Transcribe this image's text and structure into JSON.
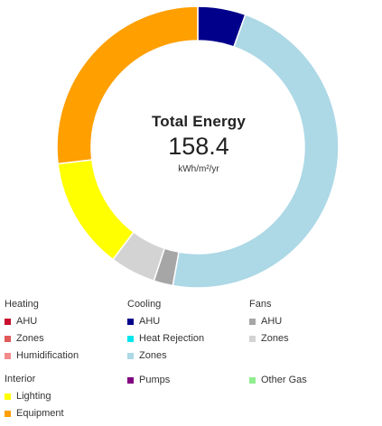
{
  "center": {
    "title": "Total Energy",
    "value": "158.4",
    "unit": "kWh/m²/yr"
  },
  "legend": {
    "groups": [
      {
        "title": "Heating",
        "items": [
          {
            "label": "AHU",
            "color": "#c8102e"
          },
          {
            "label": "Zones",
            "color": "#e05a5a"
          },
          {
            "label": "Humidification",
            "color": "#f28b8b"
          }
        ]
      },
      {
        "title": "Cooling",
        "items": [
          {
            "label": "AHU",
            "color": "#00008b"
          },
          {
            "label": "Heat Rejection",
            "color": "#00e5ee"
          },
          {
            "label": "Zones",
            "color": "#add8e6"
          }
        ]
      },
      {
        "title": "Fans",
        "items": [
          {
            "label": "AHU",
            "color": "#a6a6a6"
          },
          {
            "label": "Zones",
            "color": "#d3d3d3"
          }
        ]
      },
      {
        "title": "Interior",
        "items": [
          {
            "label": "Lighting",
            "color": "#ffff00"
          },
          {
            "label": "Equipment",
            "color": "#ff9f00"
          }
        ]
      }
    ],
    "extra_items": [
      {
        "label": "Pumps",
        "color": "#800080"
      },
      {
        "label": "Other Gas",
        "color": "#90ee90"
      }
    ]
  },
  "chart_data": {
    "type": "pie",
    "style": "donut",
    "total": 158.4,
    "unit": "kWh/m²/yr",
    "slices": [
      {
        "group": "Cooling",
        "name": "AHU",
        "value": 8.7,
        "color": "#00008b"
      },
      {
        "group": "Cooling",
        "name": "Zones",
        "value": 75.0,
        "color": "#add8e6"
      },
      {
        "group": "Fans",
        "name": "AHU",
        "value": 3.5,
        "color": "#a6a6a6"
      },
      {
        "group": "Fans",
        "name": "Zones",
        "value": 8.3,
        "color": "#d3d3d3"
      },
      {
        "group": "Interior",
        "name": "Lighting",
        "value": 20.3,
        "color": "#ffff00"
      },
      {
        "group": "Interior",
        "name": "Equipment",
        "value": 42.6,
        "color": "#ff9f00"
      }
    ]
  }
}
